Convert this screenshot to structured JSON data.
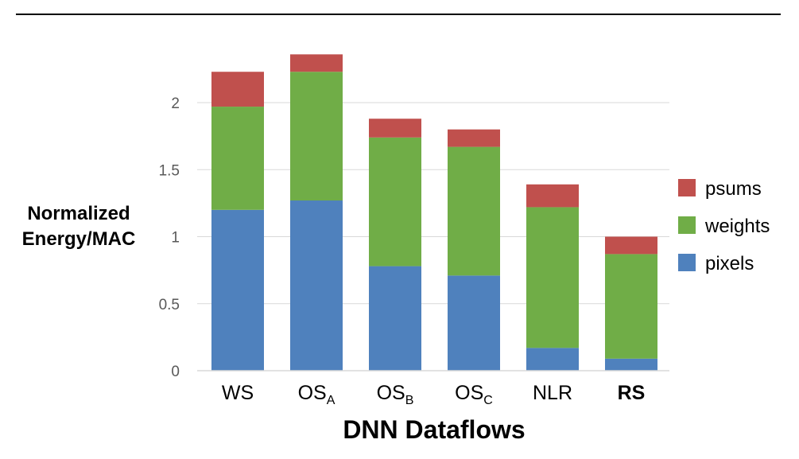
{
  "chart_data": {
    "type": "bar",
    "stacked": true,
    "categories": [
      {
        "label": "WS",
        "sub": ""
      },
      {
        "label": "OS",
        "sub": "A"
      },
      {
        "label": "OS",
        "sub": "B"
      },
      {
        "label": "OS",
        "sub": "C"
      },
      {
        "label": "NLR",
        "sub": ""
      },
      {
        "label": "RS",
        "sub": ""
      }
    ],
    "highlight_category_color": {
      "RS": "#e02020"
    },
    "series": [
      {
        "name": "pixels",
        "color": "#4f81bd",
        "values": [
          1.2,
          1.27,
          0.78,
          0.71,
          0.17,
          0.09
        ]
      },
      {
        "name": "weights",
        "color": "#70ad47",
        "values": [
          0.77,
          0.96,
          0.96,
          0.96,
          1.05,
          0.78
        ]
      },
      {
        "name": "psums",
        "color": "#c0504d",
        "values": [
          0.26,
          0.13,
          0.14,
          0.13,
          0.17,
          0.13
        ]
      }
    ],
    "legend_order": [
      "psums",
      "weights",
      "pixels"
    ],
    "legend_position": "right",
    "ylim": [
      0,
      2.4
    ],
    "yticks": [
      {
        "value": 0,
        "label": "0"
      },
      {
        "value": 0.5,
        "label": "0.5"
      },
      {
        "value": 1,
        "label": "1"
      },
      {
        "value": 1.5,
        "label": "1.5"
      },
      {
        "value": 2,
        "label": "2"
      }
    ],
    "ylabel_lines": [
      "Normalized",
      "Energy/MAC"
    ],
    "xlabel": "DNN Dataflows",
    "grid": true
  }
}
